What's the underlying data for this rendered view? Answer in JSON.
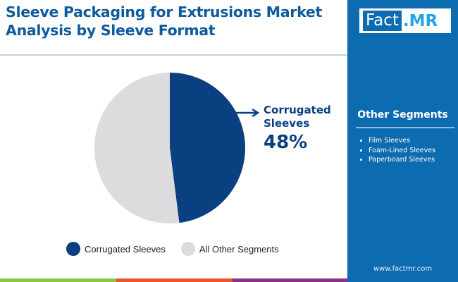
{
  "title": "Sleeve Packaging for Extrusions Market Analysis by Sleeve Format",
  "logo": "Fact.MR",
  "other_segments": {
    "heading": "Other Segments",
    "items": [
      "Film Sleeves",
      "Foam-Lined Sleeves",
      "Paperboard Sleeves"
    ]
  },
  "url": "www.factmr.com",
  "callout": {
    "label": "Corrugated Sleeves",
    "value": "48%"
  },
  "chart_data": {
    "type": "pie",
    "categories": [
      "Corrugated Sleeves",
      "All Other Segments"
    ],
    "values": [
      48,
      52
    ],
    "colors": [
      "#0a3f80",
      "#dcdcde"
    ],
    "legend": "bottom"
  }
}
